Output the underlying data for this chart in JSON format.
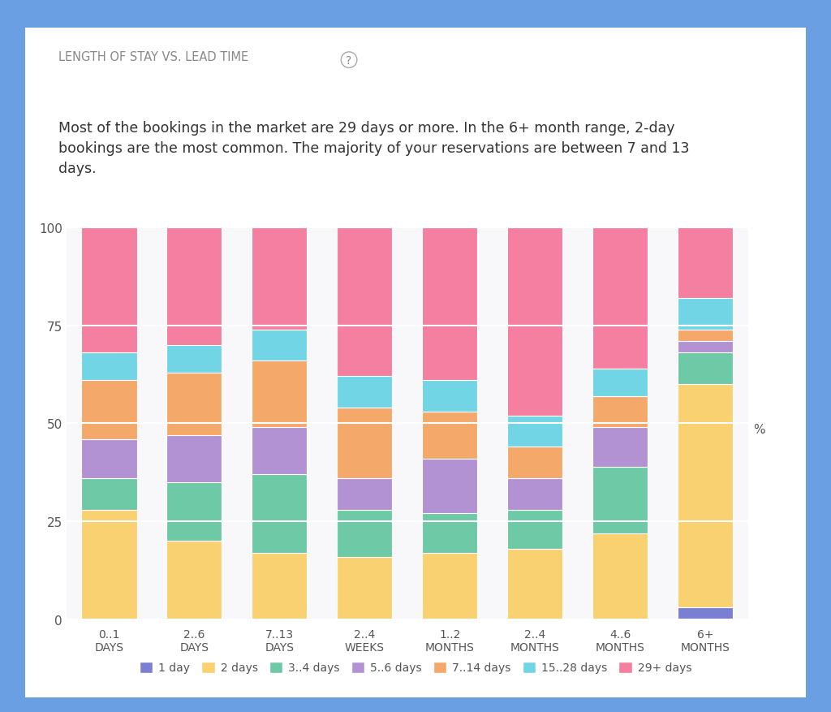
{
  "categories": [
    "0..1\nDAYS",
    "2..6\nDAYS",
    "7..13\nDAYS",
    "2..4\nWEEKS",
    "1..2\nMONTHS",
    "2..4\nMONTHS",
    "4..6\nMONTHS",
    "6+\nMONTHS"
  ],
  "series": {
    "1 day": [
      0,
      0,
      0,
      0,
      0,
      0,
      0,
      3
    ],
    "2 days": [
      28,
      20,
      17,
      16,
      17,
      18,
      22,
      57
    ],
    "3..4 days": [
      8,
      15,
      20,
      12,
      10,
      10,
      17,
      8
    ],
    "5..6 days": [
      10,
      12,
      12,
      8,
      14,
      8,
      10,
      3
    ],
    "7..14 days": [
      15,
      16,
      17,
      18,
      12,
      8,
      8,
      3
    ],
    "15..28 days": [
      7,
      7,
      8,
      8,
      8,
      8,
      7,
      8
    ],
    "29+ days": [
      32,
      30,
      26,
      38,
      39,
      48,
      36,
      18
    ]
  },
  "colors": {
    "1 day": "#7B7FD4",
    "2 days": "#F9D171",
    "3..4 days": "#6EC9A6",
    "5..6 days": "#B392D4",
    "7..14 days": "#F4A96A",
    "15..28 days": "#72D5E5",
    "29+ days": "#F47FA0"
  },
  "title": "LENGTH OF STAY VS. LEAD TIME",
  "subtitle": "Most of the bookings in the market are 29 days or more. In the 6+ month range, 2-day\nbookings are the most common. The majority of your reservations are between 7 and 13\ndays.",
  "ylabel": "%",
  "ylim": [
    0,
    100
  ],
  "yticks": [
    0,
    25,
    50,
    75,
    100
  ],
  "background_color": "#FFFFFF",
  "outer_background": "#6B9FE4",
  "grid_color": "#FFFFFF"
}
